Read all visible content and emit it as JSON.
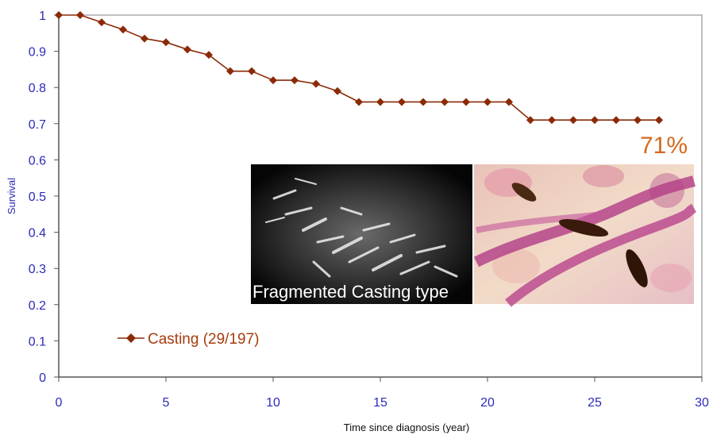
{
  "chart_data": {
    "type": "line",
    "xlabel": "Time since diagnosis (year)",
    "ylabel": "Survival",
    "xlim": [
      0,
      30
    ],
    "ylim": [
      0,
      1
    ],
    "xticks": [
      0,
      5,
      10,
      15,
      20,
      25,
      30
    ],
    "yticks": [
      0,
      0.1,
      0.2,
      0.3,
      0.4,
      0.5,
      0.6,
      0.7,
      0.8,
      0.9,
      1
    ],
    "grid": false,
    "legend_position": "bottom-left",
    "series": [
      {
        "name": "Casting (29/197)",
        "color": "#8b2a07",
        "marker": "diamond",
        "x": [
          0,
          1,
          2,
          3,
          4,
          5,
          6,
          7,
          8,
          9,
          10,
          11,
          12,
          13,
          14,
          15,
          16,
          17,
          18,
          19,
          20,
          21,
          22,
          23,
          24,
          25,
          26,
          27,
          28
        ],
        "y": [
          1,
          1,
          0.98,
          0.96,
          0.935,
          0.925,
          0.905,
          0.89,
          0.845,
          0.845,
          0.82,
          0.82,
          0.81,
          0.79,
          0.76,
          0.76,
          0.76,
          0.76,
          0.76,
          0.76,
          0.76,
          0.76,
          0.71,
          0.71,
          0.71,
          0.71,
          0.71,
          0.71,
          0.71
        ]
      }
    ],
    "annotations": [
      {
        "text": "71%",
        "color": "#d2691e"
      }
    ],
    "inset_images": [
      {
        "caption": "Fragmented Casting type",
        "description": "grayscale microscopy"
      },
      {
        "caption": "",
        "description": "stained histology"
      }
    ]
  }
}
